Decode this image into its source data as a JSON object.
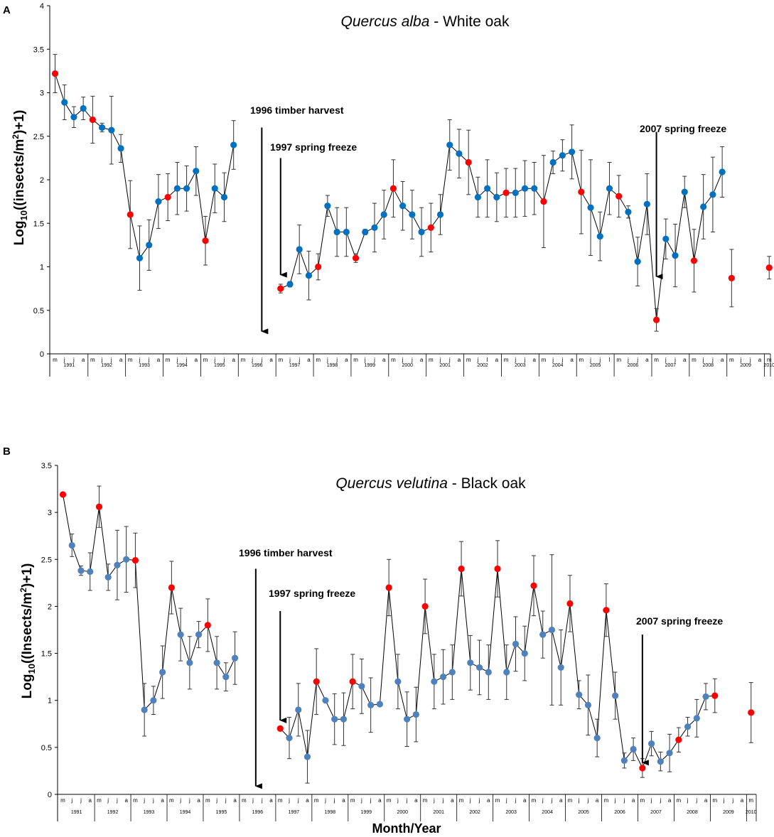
{
  "chart_data": [
    {
      "panel": "A",
      "type": "line",
      "title_italic": "Quercus alba",
      "title_rest": " - White oak",
      "ylabel_pre": "Log",
      "ylabel_sub": "10",
      "ylabel_mid": "((insects/m",
      "ylabel_sup": "2",
      "ylabel_post": ")+1)",
      "ylim": [
        0,
        4
      ],
      "yticks": [
        "0",
        "0.5",
        "1",
        "1.5",
        "2",
        "2.5",
        "3",
        "3.5",
        "4"
      ],
      "month_labels": [
        "m",
        "j",
        "j",
        "a",
        "m",
        "j",
        "j",
        "a",
        "m",
        "j",
        "j",
        "a",
        "m",
        "j",
        "j",
        "a",
        "m",
        "j",
        "j",
        "a",
        "m",
        "j",
        "j",
        "a",
        "m",
        "j",
        "j",
        "a",
        "m",
        "j",
        "j",
        "a",
        "m",
        "j",
        "j",
        "a",
        "m",
        "j",
        "j",
        "a",
        "m",
        "j",
        "j",
        "a",
        "m",
        "j",
        "l",
        "a",
        "m",
        "j",
        "j",
        "a",
        "m",
        "j",
        "j",
        "a",
        "m",
        "j",
        "j",
        "l",
        "m",
        "j",
        "j",
        "a",
        "m",
        "j",
        "j",
        "a",
        "m",
        "j",
        "j",
        "a",
        "m",
        "j",
        "j",
        "a",
        "m"
      ],
      "years": [
        "1991",
        "1992",
        "1993",
        "1994",
        "1995",
        "1996",
        "1997",
        "1998",
        "1999",
        "2000",
        "2001",
        "2002",
        "2003",
        "2004",
        "2005",
        "2006",
        "2007",
        "2008",
        "2009",
        "2010"
      ],
      "point_color": "#0070C0",
      "highlight_color": "#FF0000",
      "segments": [
        [
          {
            "i": 0,
            "y": 3.22,
            "e": 0.22,
            "red": true
          },
          {
            "i": 1,
            "y": 2.89,
            "e": 0.2
          },
          {
            "i": 2,
            "y": 2.72,
            "e": 0.12
          },
          {
            "i": 3,
            "y": 2.82,
            "e": 0.13
          },
          {
            "i": 4,
            "y": 2.69,
            "e": 0.27,
            "red": true
          },
          {
            "i": 5,
            "y": 2.6,
            "e": 0.05
          },
          {
            "i": 6,
            "y": 2.57,
            "e": 0.39
          },
          {
            "i": 7,
            "y": 2.36,
            "e": 0.16
          },
          {
            "i": 8,
            "y": 1.6,
            "e": 0.39,
            "red": true
          },
          {
            "i": 9,
            "y": 1.1,
            "e": 0.37
          },
          {
            "i": 10,
            "y": 1.25,
            "e": 0.29
          },
          {
            "i": 11,
            "y": 1.75,
            "e": 0.31
          },
          {
            "i": 12,
            "y": 1.8,
            "e": 0.27,
            "red": true
          },
          {
            "i": 13,
            "y": 1.9,
            "e": 0.3
          },
          {
            "i": 14,
            "y": 1.9,
            "e": 0.26
          },
          {
            "i": 15,
            "y": 2.1,
            "e": 0.28
          },
          {
            "i": 16,
            "y": 1.3,
            "e": 0.28,
            "red": true
          },
          {
            "i": 17,
            "y": 1.9,
            "e": 0.28
          },
          {
            "i": 18,
            "y": 1.8,
            "e": 0.28
          },
          {
            "i": 19,
            "y": 2.4,
            "e": 0.28
          }
        ],
        [
          {
            "i": 24,
            "y": 0.75,
            "e": 0.05,
            "red": true
          },
          {
            "i": 25,
            "y": 0.8,
            "e": 0.03
          },
          {
            "i": 26,
            "y": 1.2,
            "e": 0.28
          },
          {
            "i": 27,
            "y": 0.9,
            "e": 0.28
          },
          {
            "i": 28,
            "y": 1.0,
            "e": 0.15,
            "red": true
          },
          {
            "i": 29,
            "y": 1.7,
            "e": 0.12
          },
          {
            "i": 30,
            "y": 1.4,
            "e": 0.28
          },
          {
            "i": 31,
            "y": 1.4,
            "e": 0.28
          },
          {
            "i": 32,
            "y": 1.1,
            "e": 0.05,
            "red": true
          },
          {
            "i": 33,
            "y": 1.4,
            "e": 0.03
          },
          {
            "i": 34,
            "y": 1.45,
            "e": 0.28
          },
          {
            "i": 35,
            "y": 1.6,
            "e": 0.28
          },
          {
            "i": 36,
            "y": 1.9,
            "e": 0.33,
            "red": true
          },
          {
            "i": 37,
            "y": 1.7,
            "e": 0.28
          },
          {
            "i": 38,
            "y": 1.6,
            "e": 0.28
          },
          {
            "i": 39,
            "y": 1.4,
            "e": 0.28
          },
          {
            "i": 40,
            "y": 1.45,
            "e": 0.28,
            "red": true
          },
          {
            "i": 41,
            "y": 1.6,
            "e": 0.23
          },
          {
            "i": 42,
            "y": 2.4,
            "e": 0.29
          },
          {
            "i": 43,
            "y": 2.3,
            "e": 0.28
          },
          {
            "i": 44,
            "y": 2.2,
            "e": 0.37,
            "red": true
          },
          {
            "i": 45,
            "y": 1.8,
            "e": 0.23
          },
          {
            "i": 46,
            "y": 1.9,
            "e": 0.33
          },
          {
            "i": 47,
            "y": 1.8,
            "e": 0.28
          },
          {
            "i": 48,
            "y": 1.85,
            "e": 0.28,
            "red": true
          },
          {
            "i": 49,
            "y": 1.85,
            "e": 0.28
          },
          {
            "i": 50,
            "y": 1.9,
            "e": 0.32
          },
          {
            "i": 51,
            "y": 1.9,
            "e": 0.3
          },
          {
            "i": 52,
            "y": 1.75,
            "e": 0.53,
            "red": true
          },
          {
            "i": 53,
            "y": 2.2,
            "e": 0.13
          },
          {
            "i": 54,
            "y": 2.28,
            "e": 0.18
          },
          {
            "i": 55,
            "y": 2.32,
            "e": 0.31
          },
          {
            "i": 56,
            "y": 1.86,
            "e": 0.48,
            "red": true
          },
          {
            "i": 57,
            "y": 1.68,
            "e": 0.55
          },
          {
            "i": 58,
            "y": 1.35,
            "e": 0.28
          },
          {
            "i": 59,
            "y": 1.9,
            "e": 0.3
          },
          {
            "i": 60,
            "y": 1.81,
            "e": 0.24,
            "red": true
          },
          {
            "i": 61,
            "y": 1.63,
            "e": 0.07
          },
          {
            "i": 62,
            "y": 1.06,
            "e": 0.28
          },
          {
            "i": 63,
            "y": 1.72,
            "e": 0.35
          },
          {
            "i": 64,
            "y": 0.39,
            "e": 0.13,
            "red": true
          },
          {
            "i": 65,
            "y": 1.32,
            "e": 0.23
          },
          {
            "i": 66,
            "y": 1.13,
            "e": 0.36
          },
          {
            "i": 67,
            "y": 1.86,
            "e": 0.18
          },
          {
            "i": 68,
            "y": 1.07,
            "e": 0.36,
            "red": true
          },
          {
            "i": 69,
            "y": 1.69,
            "e": 0.37
          },
          {
            "i": 70,
            "y": 1.83,
            "e": 0.43
          },
          {
            "i": 71,
            "y": 2.09,
            "e": 0.29
          }
        ],
        [
          {
            "i": 72,
            "y": 0.87,
            "e": 0.33,
            "red": true
          }
        ],
        [
          {
            "i": 76,
            "y": 0.99,
            "e": 0.13,
            "red": true
          }
        ]
      ],
      "annotations": [
        {
          "text": "1996 timber harvest",
          "i": 22,
          "y_from": 2.6,
          "y_to": 0.25
        },
        {
          "text": "1997 spring freeze",
          "i": 24,
          "y_from": 2.25,
          "y_to": 0.9
        },
        {
          "text": "2007 spring freeze",
          "i": 64,
          "y_from": 2.55,
          "y_to": 0.88
        }
      ]
    },
    {
      "panel": "B",
      "type": "line",
      "title_italic": "Quercus velutina",
      "title_rest": " - Black oak",
      "ylabel_pre": "Log",
      "ylabel_sub": "10",
      "ylabel_mid": "((Insects/m",
      "ylabel_sup": "2",
      "ylabel_post": ")+1)",
      "xlabel": "Month/Year",
      "ylim": [
        0,
        3.5
      ],
      "yticks": [
        "0",
        "0.5",
        "1",
        "1.5",
        "2",
        "2.5",
        "3",
        "3.5"
      ],
      "month_labels": [
        "m",
        "j",
        "j",
        "a",
        "m",
        "j",
        "j",
        "a",
        "m",
        "j",
        "j",
        "a",
        "m",
        "j",
        "j",
        "a",
        "m",
        "j",
        "j",
        "a",
        "m",
        "j",
        "j",
        "a",
        "m",
        "j",
        "j",
        "a",
        "m",
        "j",
        "j",
        "a",
        "m",
        "j",
        "j",
        "a",
        "m",
        "j",
        "j",
        "a",
        "m",
        "j",
        "j",
        "a",
        "m",
        "j",
        "j",
        "a",
        "m",
        "j",
        "j",
        "a",
        "m",
        "j",
        "j",
        "a",
        "m",
        "j",
        "j",
        "a",
        "m",
        "j",
        "j",
        "a",
        "m",
        "j",
        "j",
        "a",
        "m",
        "j",
        "j",
        "a",
        "m",
        "j",
        "j",
        "a",
        "m"
      ],
      "years": [
        "1991",
        "1992",
        "1993",
        "1994",
        "1995",
        "1996",
        "1997",
        "1998",
        "1999",
        "2000",
        "2001",
        "2002",
        "2003",
        "2004",
        "2005",
        "2006",
        "2007",
        "2008",
        "2009",
        "2010"
      ],
      "point_color": "#4F81BD",
      "highlight_color": "#FF0000",
      "segments": [
        [
          {
            "i": 0,
            "y": 3.19,
            "e": 0.0,
            "red": true
          },
          {
            "i": 1,
            "y": 2.65,
            "e": 0.12
          },
          {
            "i": 2,
            "y": 2.38,
            "e": 0.05
          },
          {
            "i": 3,
            "y": 2.37,
            "e": 0.2
          },
          {
            "i": 4,
            "y": 3.06,
            "e": 0.22,
            "red": true
          },
          {
            "i": 5,
            "y": 2.31,
            "e": 0.14
          },
          {
            "i": 6,
            "y": 2.44,
            "e": 0.37
          },
          {
            "i": 7,
            "y": 2.5,
            "e": 0.35
          },
          {
            "i": 8,
            "y": 2.49,
            "e": 0.29,
            "red": true
          },
          {
            "i": 9,
            "y": 0.9,
            "e": 0.28
          },
          {
            "i": 10,
            "y": 1.0,
            "e": 0.15
          },
          {
            "i": 11,
            "y": 1.3,
            "e": 0.28
          },
          {
            "i": 12,
            "y": 2.2,
            "e": 0.28,
            "red": true
          },
          {
            "i": 13,
            "y": 1.7,
            "e": 0.28
          },
          {
            "i": 14,
            "y": 1.4,
            "e": 0.28
          },
          {
            "i": 15,
            "y": 1.7,
            "e": 0.14
          },
          {
            "i": 16,
            "y": 1.8,
            "e": 0.28,
            "red": true
          },
          {
            "i": 17,
            "y": 1.4,
            "e": 0.28
          },
          {
            "i": 18,
            "y": 1.25,
            "e": 0.15
          },
          {
            "i": 19,
            "y": 1.45,
            "e": 0.28
          }
        ],
        [
          {
            "i": 24,
            "y": 0.7,
            "e": 0.0,
            "red": true
          },
          {
            "i": 25,
            "y": 0.6,
            "e": 0.22
          },
          {
            "i": 26,
            "y": 0.9,
            "e": 0.28
          },
          {
            "i": 27,
            "y": 0.4,
            "e": 0.28
          },
          {
            "i": 28,
            "y": 1.2,
            "e": 0.35,
            "red": true
          },
          {
            "i": 29,
            "y": 1.0,
            "e": 0.0
          },
          {
            "i": 30,
            "y": 0.8,
            "e": 0.27
          },
          {
            "i": 31,
            "y": 0.8,
            "e": 0.28
          },
          {
            "i": 32,
            "y": 1.2,
            "e": 0.29,
            "red": true
          },
          {
            "i": 33,
            "y": 1.15,
            "e": 0.29
          },
          {
            "i": 34,
            "y": 0.95,
            "e": 0.29
          },
          {
            "i": 35,
            "y": 0.96,
            "e": 0.0
          },
          {
            "i": 36,
            "y": 2.2,
            "e": 0.3,
            "red": true
          },
          {
            "i": 37,
            "y": 1.2,
            "e": 0.29
          },
          {
            "i": 38,
            "y": 0.8,
            "e": 0.29
          },
          {
            "i": 39,
            "y": 0.85,
            "e": 0.29
          },
          {
            "i": 40,
            "y": 2.0,
            "e": 0.29,
            "red": true
          },
          {
            "i": 41,
            "y": 1.2,
            "e": 0.29
          },
          {
            "i": 42,
            "y": 1.25,
            "e": 0.29
          },
          {
            "i": 43,
            "y": 1.3,
            "e": 0.29
          },
          {
            "i": 44,
            "y": 2.4,
            "e": 0.29,
            "red": true
          },
          {
            "i": 45,
            "y": 1.4,
            "e": 0.29
          },
          {
            "i": 46,
            "y": 1.35,
            "e": 0.29
          },
          {
            "i": 47,
            "y": 1.3,
            "e": 0.29
          },
          {
            "i": 48,
            "y": 2.4,
            "e": 0.3,
            "red": true
          },
          {
            "i": 49,
            "y": 1.3,
            "e": 0.29
          },
          {
            "i": 50,
            "y": 1.6,
            "e": 0.29
          },
          {
            "i": 51,
            "y": 1.5,
            "e": 0.29
          },
          {
            "i": 52,
            "y": 2.22,
            "e": 0.32,
            "red": true
          },
          {
            "i": 53,
            "y": 1.7,
            "e": 0.25
          },
          {
            "i": 54,
            "y": 1.75,
            "e": 0.8
          },
          {
            "i": 55,
            "y": 1.35,
            "e": 0.4
          },
          {
            "i": 56,
            "y": 2.03,
            "e": 0.3,
            "red": true
          },
          {
            "i": 57,
            "y": 1.06,
            "e": 0.15
          },
          {
            "i": 58,
            "y": 0.95,
            "e": 0.32
          },
          {
            "i": 59,
            "y": 0.6,
            "e": 0.2
          },
          {
            "i": 60,
            "y": 1.96,
            "e": 0.28,
            "red": true
          },
          {
            "i": 61,
            "y": 1.05,
            "e": 0.25
          },
          {
            "i": 62,
            "y": 0.36,
            "e": 0.08
          },
          {
            "i": 63,
            "y": 0.48,
            "e": 0.12
          },
          {
            "i": 64,
            "y": 0.28,
            "e": 0.1,
            "red": true
          },
          {
            "i": 65,
            "y": 0.54,
            "e": 0.13
          },
          {
            "i": 66,
            "y": 0.35,
            "e": 0.1
          },
          {
            "i": 67,
            "y": 0.44,
            "e": 0.2
          },
          {
            "i": 68,
            "y": 0.58,
            "e": 0.13,
            "red": true
          },
          {
            "i": 69,
            "y": 0.72,
            "e": 0.1
          },
          {
            "i": 70,
            "y": 0.81,
            "e": 0.2
          },
          {
            "i": 71,
            "y": 1.04,
            "e": 0.14
          },
          {
            "i": 72,
            "y": 1.05,
            "e": 0.18,
            "red": true
          }
        ],
        [
          {
            "i": 76,
            "y": 0.87,
            "e": 0.32,
            "red": true
          }
        ]
      ],
      "annotations": [
        {
          "text": "1996 timber harvest",
          "i": 21.3,
          "y_from": 2.4,
          "y_to": 0.08
        },
        {
          "text": "1997 spring freeze",
          "i": 24,
          "y_from": 1.95,
          "y_to": 0.78
        },
        {
          "text": "2007 spring freeze",
          "i": 64,
          "y_from": 1.7,
          "y_to": 0.33
        }
      ]
    }
  ]
}
